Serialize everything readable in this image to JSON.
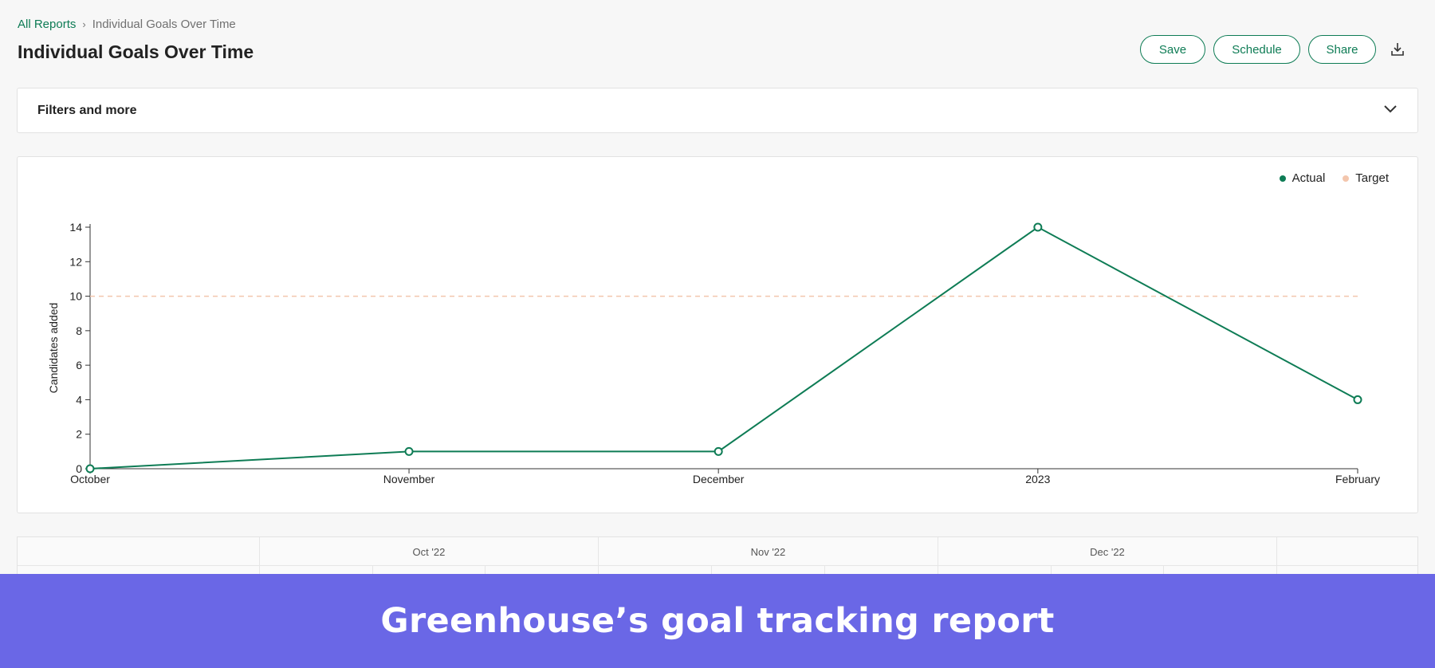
{
  "breadcrumb": {
    "parent": "All Reports",
    "separator": "›",
    "current": "Individual Goals Over Time"
  },
  "page": {
    "title": "Individual Goals Over Time"
  },
  "actions": {
    "save": "Save",
    "schedule": "Schedule",
    "share": "Share",
    "download_icon": "download-icon"
  },
  "filters": {
    "title": "Filters and more",
    "icon": "chevron-down-icon"
  },
  "legend": [
    {
      "label": "Actual",
      "color": "#0e7c55"
    },
    {
      "label": "Target",
      "color": "#f3c6ad"
    }
  ],
  "chart_data": {
    "type": "line",
    "categories": [
      "October",
      "November",
      "December",
      "2023",
      "February"
    ],
    "series": [
      {
        "name": "Actual",
        "values": [
          0,
          1,
          1,
          14,
          4
        ],
        "color": "#0e7c55"
      },
      {
        "name": "Target",
        "values": [
          10,
          10,
          10,
          10,
          10
        ],
        "color": "#f3c6ad",
        "style": "dashed"
      }
    ],
    "ylabel": "Candidates added",
    "ylim": [
      0,
      14
    ],
    "yticks": [
      0,
      2,
      4,
      6,
      8,
      10,
      12,
      14
    ],
    "legend_position": "top-right"
  },
  "table": {
    "columns": [
      "",
      "Oct '22",
      "Nov '22",
      "Dec '22",
      ""
    ]
  },
  "banner": {
    "text": "Greenhouse’s goal tracking report"
  }
}
